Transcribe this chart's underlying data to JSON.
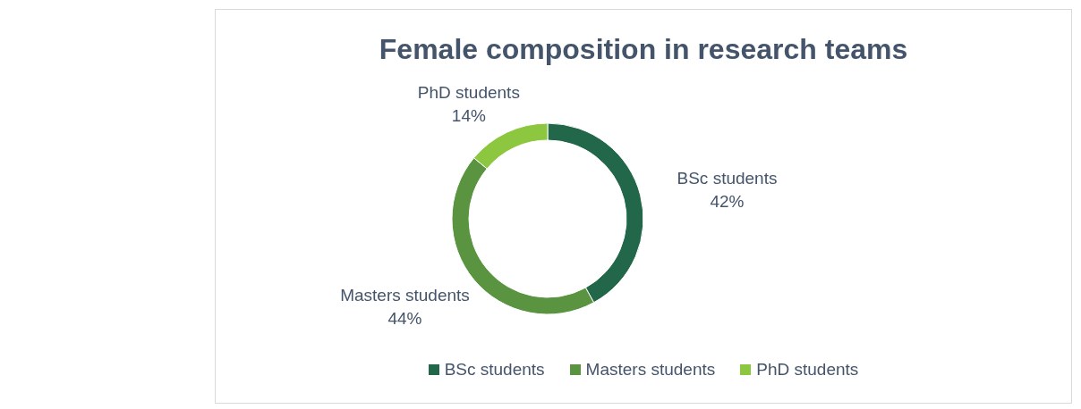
{
  "chart_data": {
    "type": "donut",
    "title": "Female composition in research teams",
    "categories": [
      "BSc students",
      "Masters students",
      "PhD students"
    ],
    "values": [
      42,
      44,
      14
    ],
    "value_labels": [
      "42%",
      "44%",
      "14%"
    ],
    "colors": [
      "#23674a",
      "#5a9440",
      "#8dc63f"
    ],
    "legend": "bottom"
  }
}
